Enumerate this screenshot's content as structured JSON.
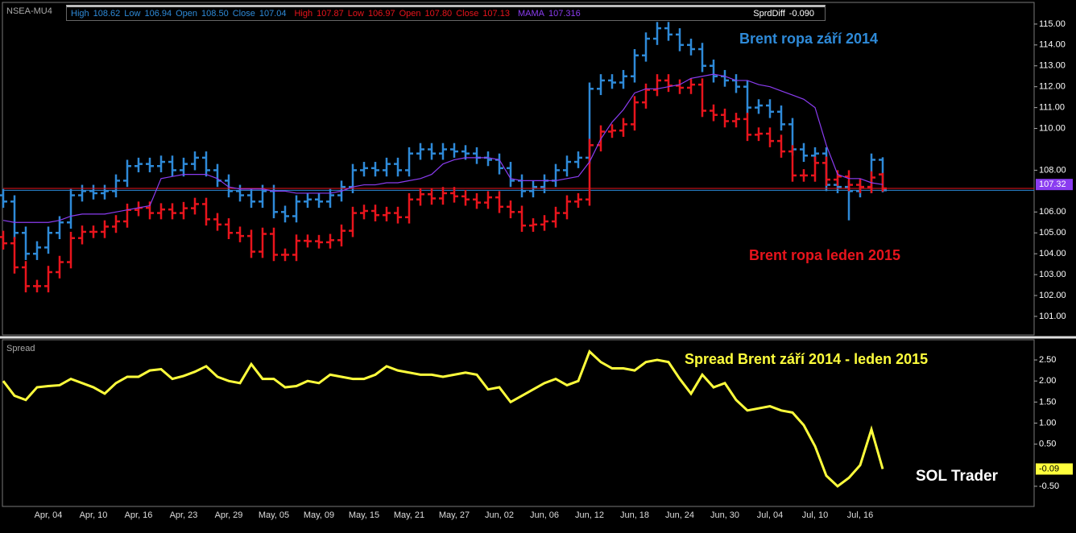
{
  "chart_data": [
    {
      "type": "ohlc",
      "window": "NSEA-MU4",
      "ylim": [
        100.15,
        115.96
      ],
      "yticks": [
        {
          "value": 115,
          "label": "115.00"
        },
        {
          "value": 114,
          "label": "114.00"
        },
        {
          "value": 113,
          "label": "113.00"
        },
        {
          "value": 112,
          "label": "112.00"
        },
        {
          "value": 111,
          "label": "111.00"
        },
        {
          "value": 110,
          "label": "110.00"
        },
        {
          "value": 108,
          "label": "108.00"
        },
        {
          "value": 106,
          "label": "106.00"
        },
        {
          "value": 105,
          "label": "105.00"
        },
        {
          "value": 104,
          "label": "104.00"
        },
        {
          "value": 103,
          "label": "103.00"
        },
        {
          "value": 102,
          "label": "102.00"
        },
        {
          "value": 101,
          "label": "101.00"
        }
      ],
      "series": [
        {
          "name": "Brent ropa září 2014",
          "color": "#2e8ad8",
          "readout": [
            {
              "label": "High",
              "text": "108.62"
            },
            {
              "label": "Low",
              "text": "106.94"
            },
            {
              "label": "Open",
              "text": "108.50"
            },
            {
              "label": "Close",
              "text": "107.04"
            }
          ],
          "open": [
            106.8,
            106.5,
            105.0,
            104.0,
            104.3,
            105.0,
            105.5,
            106.8,
            107.0,
            106.9,
            107.0,
            107.5,
            108.2,
            108.3,
            108.2,
            108.4,
            108.0,
            108.3,
            108.6,
            108.0,
            107.5,
            107.0,
            106.8,
            106.5,
            107.0,
            106.0,
            105.8,
            106.5,
            106.6,
            106.5,
            106.8,
            107.2,
            108.0,
            108.1,
            108.0,
            108.3,
            108.0,
            108.8,
            109.0,
            108.8,
            109.0,
            108.9,
            108.8,
            108.6,
            108.5,
            108.1,
            107.5,
            107.0,
            107.2,
            107.5,
            108.0,
            108.4,
            108.6,
            111.9,
            112.3,
            112.2,
            112.5,
            113.5,
            114.3,
            114.8,
            114.5,
            114.0,
            113.8,
            113.0,
            112.5,
            112.3,
            112.0,
            111.0,
            111.1,
            110.8,
            110.2,
            109.0,
            108.7,
            108.8,
            107.3,
            107.2,
            107.0,
            107.2,
            108.5
          ],
          "high": [
            107.1,
            106.8,
            105.3,
            104.6,
            105.3,
            105.8,
            107.1,
            107.3,
            107.3,
            107.3,
            107.8,
            108.5,
            108.6,
            108.6,
            108.7,
            108.7,
            108.6,
            108.9,
            108.9,
            108.3,
            107.8,
            107.3,
            107.1,
            107.3,
            107.3,
            106.3,
            106.8,
            106.9,
            106.9,
            107.1,
            107.5,
            108.3,
            108.4,
            108.4,
            108.6,
            108.6,
            109.1,
            109.3,
            109.3,
            109.3,
            109.3,
            109.2,
            109.1,
            108.9,
            108.8,
            108.4,
            107.8,
            107.5,
            107.8,
            108.3,
            108.7,
            108.9,
            112.2,
            112.6,
            112.6,
            112.8,
            113.8,
            114.6,
            115.1,
            115.1,
            114.8,
            114.3,
            114.1,
            113.3,
            112.8,
            112.6,
            112.3,
            111.4,
            111.4,
            111.1,
            110.5,
            109.3,
            109.1,
            109.1,
            107.6,
            107.5,
            107.5,
            108.8,
            108.62
          ],
          "low": [
            106.2,
            104.7,
            103.7,
            103.7,
            104.0,
            104.7,
            105.2,
            106.5,
            106.6,
            106.6,
            106.7,
            107.2,
            107.9,
            107.9,
            107.9,
            107.7,
            107.7,
            108.0,
            107.7,
            107.2,
            106.7,
            106.5,
            106.2,
            106.2,
            105.7,
            105.5,
            105.5,
            106.2,
            106.2,
            106.2,
            106.5,
            106.9,
            107.7,
            107.7,
            107.7,
            107.7,
            107.7,
            108.5,
            108.5,
            108.5,
            108.6,
            108.5,
            108.3,
            108.2,
            107.8,
            107.2,
            106.7,
            106.7,
            106.9,
            107.2,
            107.7,
            108.1,
            108.3,
            111.6,
            111.9,
            111.9,
            112.2,
            113.2,
            114.0,
            114.2,
            113.7,
            113.5,
            112.7,
            112.2,
            112.0,
            111.7,
            110.7,
            110.7,
            110.5,
            109.9,
            108.7,
            108.4,
            108.4,
            107.0,
            106.9,
            105.6,
            106.7,
            106.9,
            106.94
          ],
          "close": [
            106.5,
            105.0,
            104.0,
            104.3,
            105.0,
            105.5,
            106.8,
            107.0,
            106.9,
            107.0,
            107.5,
            108.2,
            108.3,
            108.2,
            108.4,
            108.0,
            108.3,
            108.6,
            108.0,
            107.5,
            107.0,
            106.8,
            106.5,
            107.0,
            106.0,
            105.8,
            106.5,
            106.6,
            106.5,
            106.8,
            107.2,
            108.0,
            108.1,
            108.0,
            108.3,
            108.0,
            108.8,
            109.0,
            108.8,
            109.0,
            108.9,
            108.8,
            108.6,
            108.5,
            108.1,
            107.5,
            107.0,
            107.2,
            107.5,
            108.0,
            108.4,
            108.6,
            111.9,
            112.3,
            112.2,
            112.5,
            113.5,
            114.3,
            114.8,
            114.5,
            114.0,
            113.8,
            113.0,
            112.5,
            112.3,
            112.0,
            111.0,
            111.1,
            110.8,
            110.2,
            109.0,
            108.7,
            108.8,
            107.3,
            107.2,
            107.0,
            107.2,
            108.5,
            107.04
          ]
        },
        {
          "name": "Brent ropa leden 2015",
          "color": "#e8141c",
          "readout": [
            {
              "label": "High",
              "text": "107.87"
            },
            {
              "label": "Low",
              "text": "106.97"
            },
            {
              "label": "Open",
              "text": "107.80"
            },
            {
              "label": "Close",
              "text": "107.13"
            }
          ],
          "open": [
            104.8,
            104.5,
            103.35,
            102.45,
            102.45,
            103.12,
            103.6,
            104.75,
            105.05,
            105.05,
            105.3,
            105.55,
            106.1,
            106.2,
            105.95,
            106.12,
            105.95,
            106.18,
            106.38,
            105.65,
            105.4,
            105.0,
            104.85,
            104.1,
            104.95,
            103.95,
            103.95,
            104.62,
            104.6,
            104.55,
            104.65,
            105.1,
            105.95,
            106.05,
            105.85,
            105.95,
            105.75,
            106.6,
            106.85,
            106.65,
            106.9,
            106.75,
            106.6,
            106.45,
            106.7,
            106.25,
            106.0,
            105.35,
            105.4,
            105.55,
            105.95,
            106.5,
            106.6,
            109.2,
            109.85,
            109.9,
            110.2,
            111.25,
            111.85,
            112.3,
            112.05,
            111.95,
            112.1,
            110.85,
            110.65,
            110.35,
            110.45,
            109.7,
            109.75,
            109.4,
            108.9,
            107.75,
            107.75,
            108.35,
            107.55,
            107.7,
            107.3,
            107.2,
            107.8
          ],
          "high": [
            105.1,
            104.8,
            103.65,
            102.75,
            103.42,
            103.9,
            105.05,
            105.35,
            105.35,
            105.6,
            105.85,
            106.4,
            106.5,
            106.5,
            106.42,
            106.42,
            106.48,
            106.68,
            106.68,
            105.95,
            105.7,
            105.3,
            105.15,
            105.25,
            105.25,
            104.25,
            104.92,
            104.92,
            104.9,
            104.95,
            105.4,
            106.25,
            106.35,
            106.35,
            106.25,
            106.25,
            106.9,
            107.15,
            107.15,
            107.2,
            107.2,
            107.05,
            106.9,
            107.0,
            107.0,
            106.55,
            106.3,
            105.7,
            105.85,
            106.25,
            106.8,
            106.9,
            109.5,
            110.15,
            110.2,
            110.5,
            111.55,
            112.15,
            112.6,
            112.6,
            112.35,
            112.4,
            112.4,
            111.15,
            110.95,
            110.75,
            110.75,
            110.05,
            110.05,
            109.7,
            109.2,
            108.05,
            108.65,
            108.65,
            108.0,
            108.0,
            107.6,
            107.95,
            107.87
          ],
          "low": [
            104.2,
            103.05,
            102.15,
            102.15,
            102.15,
            102.82,
            103.3,
            104.45,
            104.75,
            104.75,
            105.0,
            105.25,
            105.8,
            105.65,
            105.65,
            105.65,
            105.65,
            105.88,
            105.35,
            105.1,
            104.7,
            104.55,
            103.8,
            103.8,
            103.65,
            103.65,
            103.65,
            104.3,
            104.25,
            104.25,
            104.35,
            104.8,
            105.65,
            105.55,
            105.55,
            105.45,
            105.45,
            106.3,
            106.35,
            106.35,
            106.45,
            106.3,
            106.15,
            106.15,
            105.95,
            105.7,
            105.05,
            105.05,
            105.1,
            105.25,
            105.65,
            106.2,
            106.3,
            108.9,
            109.55,
            109.6,
            109.9,
            110.95,
            111.55,
            111.75,
            111.65,
            111.65,
            110.55,
            110.35,
            110.05,
            110.05,
            109.4,
            109.4,
            109.1,
            108.6,
            107.45,
            107.45,
            107.45,
            107.25,
            107.25,
            107.0,
            106.9,
            106.9,
            106.97
          ],
          "close": [
            104.5,
            103.35,
            102.45,
            102.45,
            103.12,
            103.6,
            104.75,
            105.05,
            105.05,
            105.3,
            105.55,
            106.1,
            106.2,
            105.95,
            106.12,
            105.95,
            106.18,
            106.38,
            105.65,
            105.4,
            105.0,
            104.85,
            104.1,
            104.95,
            103.95,
            103.95,
            104.62,
            104.6,
            104.55,
            104.65,
            105.1,
            105.95,
            106.05,
            105.85,
            105.95,
            105.75,
            106.6,
            106.85,
            106.65,
            106.9,
            106.75,
            106.6,
            106.45,
            106.7,
            106.25,
            106.0,
            105.35,
            105.4,
            105.55,
            105.95,
            106.5,
            106.6,
            109.2,
            109.85,
            109.9,
            110.2,
            111.25,
            111.85,
            112.3,
            112.05,
            111.95,
            112.1,
            110.85,
            110.65,
            110.35,
            110.45,
            109.7,
            109.75,
            109.4,
            108.9,
            107.75,
            107.75,
            108.35,
            107.55,
            107.7,
            107.3,
            107.2,
            107.65,
            107.13
          ]
        },
        {
          "name": "MAMA",
          "color": "#8a3cf0",
          "readout": [
            {
              "text": "107.316"
            }
          ],
          "last_label": "107.32",
          "values": [
            105.6,
            105.5,
            105.5,
            105.5,
            105.5,
            105.6,
            105.8,
            105.9,
            105.9,
            105.9,
            106.0,
            106.1,
            106.2,
            106.3,
            107.6,
            107.7,
            107.8,
            107.8,
            107.8,
            107.6,
            107.2,
            107.1,
            107.1,
            107.1,
            107.0,
            107.0,
            106.9,
            106.9,
            106.9,
            106.9,
            107.0,
            107.2,
            107.3,
            107.3,
            107.4,
            107.4,
            107.5,
            107.6,
            107.8,
            108.3,
            108.5,
            108.6,
            108.6,
            108.6,
            108.5,
            107.6,
            107.5,
            107.5,
            107.5,
            107.5,
            107.6,
            107.7,
            108.4,
            109.5,
            110.3,
            110.9,
            111.7,
            111.9,
            111.9,
            112.0,
            112.1,
            112.4,
            112.5,
            112.6,
            112.5,
            112.3,
            112.3,
            112.1,
            112.0,
            111.8,
            111.6,
            111.4,
            111.0,
            109.2,
            107.8,
            107.6,
            107.6,
            107.4,
            107.316
          ]
        }
      ]
    },
    {
      "type": "line",
      "title": "Spread",
      "annotations": [
        "SOL Trader"
      ],
      "readout": [
        {
          "label": "SprdDiff",
          "text": "-0.090"
        }
      ],
      "ylim": [
        -0.96,
        2.96
      ],
      "yticks": [
        {
          "value": 2.5,
          "label": "2.50"
        },
        {
          "value": 2,
          "label": "2.00"
        },
        {
          "value": 1.5,
          "label": "1.50"
        },
        {
          "value": 1,
          "label": "1.00"
        },
        {
          "value": 0.5,
          "label": "0.50"
        },
        {
          "value": -0.5,
          "label": "-0.50"
        }
      ],
      "categories": [
        null,
        null,
        null,
        null,
        "Apr, 04",
        null,
        null,
        null,
        "Apr, 10",
        null,
        null,
        null,
        "Apr, 16",
        null,
        null,
        null,
        "Apr, 23",
        null,
        null,
        null,
        "Apr, 29",
        null,
        null,
        null,
        "May, 05",
        null,
        null,
        null,
        "May, 09",
        null,
        null,
        null,
        "May, 15",
        null,
        null,
        null,
        "May, 21",
        null,
        null,
        null,
        "May, 27",
        null,
        null,
        null,
        "Jun, 02",
        null,
        null,
        null,
        "Jun, 06",
        null,
        null,
        null,
        "Jun, 12",
        null,
        null,
        null,
        "Jun, 18",
        null,
        null,
        null,
        "Jun, 24",
        null,
        null,
        null,
        "Jun, 30",
        null,
        null,
        null,
        "Jul, 04",
        null,
        null,
        null,
        "Jul, 10",
        null,
        null,
        null,
        "Jul, 16",
        null,
        null
      ],
      "series": [
        {
          "name": "Spread Brent září 2014 - leden 2015",
          "color": "#ffff3c",
          "last_label": "-0.09",
          "values": [
            2.0,
            1.65,
            1.55,
            1.85,
            1.88,
            1.9,
            2.05,
            1.95,
            1.85,
            1.7,
            1.95,
            2.1,
            2.1,
            2.25,
            2.28,
            2.05,
            2.12,
            2.22,
            2.35,
            2.1,
            2.0,
            1.95,
            2.4,
            2.05,
            2.05,
            1.85,
            1.88,
            2.0,
            1.95,
            2.15,
            2.1,
            2.05,
            2.05,
            2.15,
            2.35,
            2.25,
            2.2,
            2.15,
            2.15,
            2.1,
            2.15,
            2.2,
            2.15,
            1.8,
            1.85,
            1.5,
            1.65,
            1.8,
            1.95,
            2.05,
            1.9,
            2.0,
            2.7,
            2.45,
            2.3,
            2.3,
            2.25,
            2.45,
            2.5,
            2.45,
            2.05,
            1.7,
            2.15,
            1.85,
            1.95,
            1.55,
            1.3,
            1.35,
            1.4,
            1.3,
            1.25,
            0.95,
            0.45,
            -0.25,
            -0.5,
            -0.3,
            0.0,
            0.85,
            -0.09
          ]
        }
      ]
    }
  ]
}
